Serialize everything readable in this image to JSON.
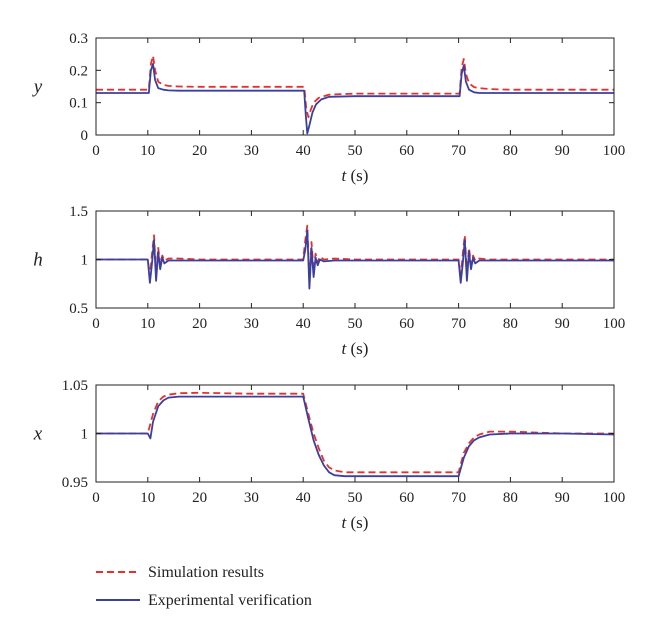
{
  "chart_data": [
    {
      "type": "line",
      "ylabel": "y",
      "xlabel_var": "t",
      "xlabel_unit": "(s)",
      "xlim": [
        0,
        100
      ],
      "ylim": [
        0,
        0.3
      ],
      "xticks": [
        "0",
        "10",
        "20",
        "30",
        "40",
        "50",
        "60",
        "70",
        "80",
        "90",
        "100"
      ],
      "yticks": [
        "0",
        "0.1",
        "0.2",
        "0.3"
      ],
      "series": [
        {
          "name": "Simulation results",
          "color": "#e8302a",
          "style": "dashed",
          "x": [
            0,
            10.2,
            10.6,
            11.0,
            11.4,
            12,
            13,
            14,
            16,
            20,
            30,
            40.2,
            40.6,
            41.0,
            41.5,
            42,
            43,
            45,
            50,
            60,
            70.2,
            70.6,
            71.0,
            71.4,
            72,
            73,
            74,
            76,
            80,
            90,
            100
          ],
          "y": [
            0.14,
            0.14,
            0.22,
            0.245,
            0.2,
            0.165,
            0.155,
            0.152,
            0.15,
            0.149,
            0.149,
            0.149,
            0.08,
            0.055,
            0.08,
            0.1,
            0.115,
            0.125,
            0.128,
            0.128,
            0.128,
            0.21,
            0.235,
            0.19,
            0.16,
            0.148,
            0.145,
            0.142,
            0.14,
            0.14,
            0.14
          ]
        },
        {
          "name": "Experimental verification",
          "color": "#3a3fa0",
          "style": "solid",
          "x": [
            0,
            10.2,
            10.6,
            11.0,
            11.4,
            12,
            13,
            14,
            16,
            20,
            30,
            40.2,
            40.5,
            40.8,
            41.2,
            41.8,
            42.5,
            43.5,
            45,
            50,
            60,
            70.2,
            70.6,
            71.0,
            71.4,
            72,
            73,
            74,
            76,
            80,
            90,
            100
          ],
          "y": [
            0.13,
            0.13,
            0.2,
            0.22,
            0.17,
            0.145,
            0.14,
            0.138,
            0.137,
            0.137,
            0.137,
            0.137,
            0.06,
            0.005,
            0.03,
            0.07,
            0.095,
            0.11,
            0.118,
            0.12,
            0.12,
            0.12,
            0.19,
            0.215,
            0.165,
            0.14,
            0.132,
            0.13,
            0.13,
            0.13,
            0.13,
            0.13
          ]
        }
      ]
    },
    {
      "type": "line",
      "ylabel": "h",
      "xlabel_var": "t",
      "xlabel_unit": "(s)",
      "xlim": [
        0,
        100
      ],
      "ylim": [
        0.5,
        1.5
      ],
      "xticks": [
        "0",
        "10",
        "20",
        "30",
        "40",
        "50",
        "60",
        "70",
        "80",
        "90",
        "100"
      ],
      "yticks": [
        "0.5",
        "1",
        "1.5"
      ],
      "series": [
        {
          "name": "Simulation results",
          "color": "#e8302a",
          "style": "dashed",
          "x": [
            0,
            10.0,
            10.4,
            10.8,
            11.2,
            11.6,
            12.0,
            12.4,
            12.8,
            13.2,
            14,
            16,
            20,
            40.0,
            40.4,
            40.8,
            41.2,
            41.6,
            42.0,
            42.4,
            42.8,
            43.2,
            44,
            46,
            50,
            70.0,
            70.4,
            70.8,
            71.2,
            71.6,
            72.0,
            72.4,
            72.8,
            73.2,
            74,
            76,
            80,
            100
          ],
          "y": [
            1.0,
            1.0,
            0.82,
            1.05,
            1.25,
            0.85,
            1.12,
            0.95,
            1.04,
            0.99,
            1.01,
            1.01,
            1.0,
            1.0,
            1.2,
            1.35,
            0.78,
            1.18,
            0.88,
            1.06,
            0.97,
            1.03,
            1.0,
            1.01,
            1.0,
            1.0,
            0.82,
            1.05,
            1.25,
            0.85,
            1.12,
            0.95,
            1.04,
            0.99,
            1.01,
            1.0,
            1.0,
            1.0
          ]
        },
        {
          "name": "Experimental verification",
          "color": "#3a3fa0",
          "style": "solid",
          "x": [
            0,
            10.0,
            10.4,
            10.8,
            11.2,
            11.6,
            12.0,
            12.4,
            12.8,
            13.2,
            14,
            16,
            20,
            40.0,
            40.4,
            40.8,
            41.2,
            41.6,
            42.0,
            42.4,
            42.8,
            43.2,
            44,
            46,
            50,
            70.0,
            70.4,
            70.8,
            71.2,
            71.6,
            72.0,
            72.4,
            72.8,
            73.2,
            74,
            76,
            80,
            100
          ],
          "y": [
            1.0,
            1.0,
            0.76,
            0.95,
            1.2,
            0.78,
            1.08,
            0.9,
            1.02,
            0.96,
            0.99,
            0.99,
            0.99,
            0.99,
            1.1,
            1.3,
            0.7,
            1.12,
            0.82,
            1.02,
            0.94,
            1.0,
            0.98,
            0.99,
            0.99,
            0.99,
            0.76,
            0.95,
            1.2,
            0.78,
            1.08,
            0.9,
            1.02,
            0.96,
            0.99,
            0.99,
            0.99,
            0.99
          ]
        }
      ]
    },
    {
      "type": "line",
      "ylabel": "x",
      "xlabel_var": "t",
      "xlabel_unit": "(s)",
      "xlim": [
        0,
        100
      ],
      "ylim": [
        0.95,
        1.05
      ],
      "xticks": [
        "0",
        "10",
        "20",
        "30",
        "40",
        "50",
        "60",
        "70",
        "80",
        "90",
        "100"
      ],
      "yticks": [
        "0.95",
        "1",
        "1.05"
      ],
      "series": [
        {
          "name": "Simulation results",
          "color": "#e8302a",
          "style": "dashed",
          "x": [
            0,
            10,
            11,
            12,
            13,
            14,
            16,
            20,
            30,
            40,
            41,
            42,
            43,
            44,
            45,
            46,
            48,
            50,
            60,
            70,
            71,
            72,
            73,
            74,
            76,
            80,
            90,
            100
          ],
          "y": [
            1.0,
            1.0,
            1.02,
            1.033,
            1.038,
            1.04,
            1.0415,
            1.042,
            1.041,
            1.041,
            1.02,
            1.0,
            0.985,
            0.972,
            0.965,
            0.962,
            0.96,
            0.96,
            0.96,
            0.96,
            0.98,
            0.99,
            0.996,
            0.999,
            1.002,
            1.002,
            1.0,
            1.0
          ]
        },
        {
          "name": "Experimental verification",
          "color": "#3a3fa0",
          "style": "solid",
          "x": [
            0,
            10,
            10.5,
            11,
            12,
            13,
            14,
            16,
            20,
            30,
            40,
            41,
            42,
            43,
            44,
            45,
            46,
            48,
            50,
            60,
            70,
            71,
            72,
            73,
            74,
            76,
            80,
            90,
            100
          ],
          "y": [
            1.0,
            1.0,
            0.995,
            1.012,
            1.028,
            1.034,
            1.037,
            1.038,
            1.038,
            1.038,
            1.038,
            1.015,
            0.993,
            0.978,
            0.967,
            0.96,
            0.957,
            0.956,
            0.956,
            0.956,
            0.956,
            0.975,
            0.987,
            0.993,
            0.996,
            0.999,
            1.0,
            1.0,
            0.999
          ]
        }
      ]
    }
  ],
  "legend": [
    {
      "label": "Simulation results",
      "color": "#e8302a",
      "style": "dashed"
    },
    {
      "label": "Experimental verification",
      "color": "#3a3fa0",
      "style": "solid"
    }
  ]
}
